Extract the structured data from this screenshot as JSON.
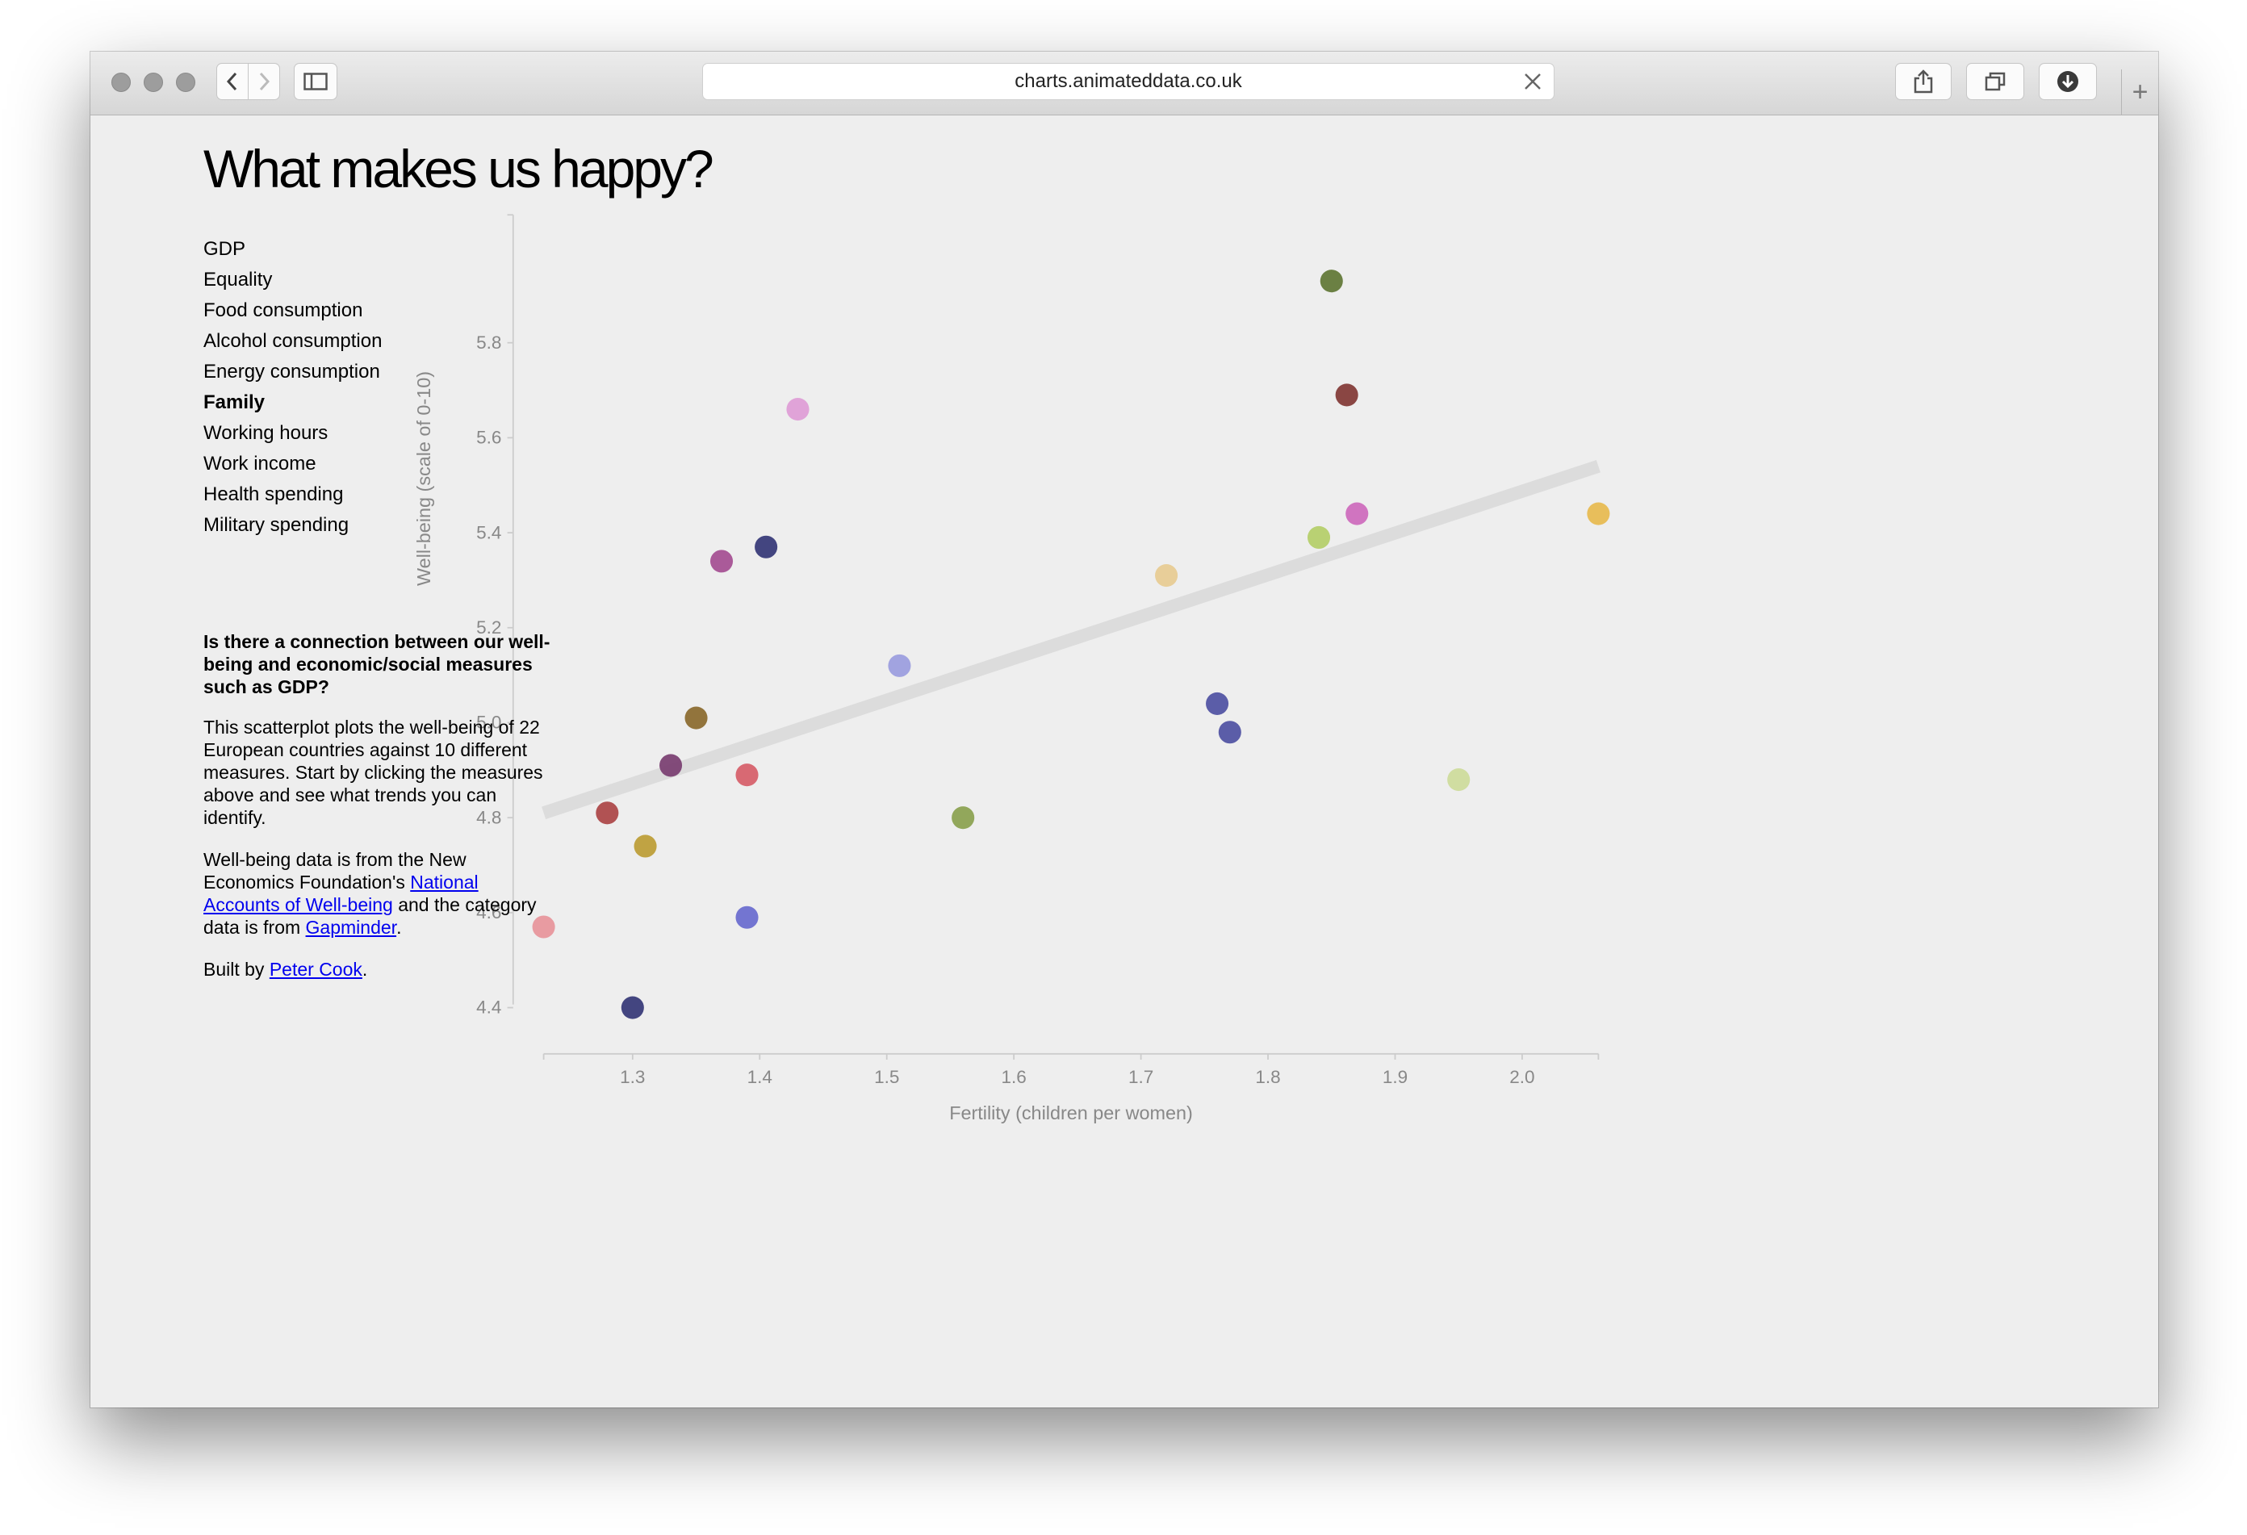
{
  "browser": {
    "url": "charts.animateddata.co.uk",
    "icons": [
      "back-icon",
      "forward-icon",
      "sidebar-icon",
      "close-icon",
      "share-icon",
      "tabs-icon",
      "download-icon",
      "plus-icon"
    ],
    "new_tab_symbol": "+"
  },
  "page": {
    "title": "What makes us happy?",
    "measures": [
      {
        "label": "GDP",
        "active": false
      },
      {
        "label": "Equality",
        "active": false
      },
      {
        "label": "Food consumption",
        "active": false
      },
      {
        "label": "Alcohol consumption",
        "active": false
      },
      {
        "label": "Energy consumption",
        "active": false
      },
      {
        "label": "Family",
        "active": true
      },
      {
        "label": "Working hours",
        "active": false
      },
      {
        "label": "Work income",
        "active": false
      },
      {
        "label": "Health spending",
        "active": false
      },
      {
        "label": "Military spending",
        "active": false
      }
    ],
    "info": {
      "question": "Is there a connection between our well-being and economic/social measures such as GDP?",
      "description": "This scatterplot plots the well-being of 22 European countries against 10 different measures. Start by clicking the measures above and see what trends you can identify.",
      "source_pre": "Well-being data is from the New Economics Foundation's ",
      "source_link1": "National Accounts of Well-being",
      "source_mid": " and the category data is from ",
      "source_link2": "Gapminder",
      "source_post": ".",
      "built_pre": "Built by ",
      "built_link": "Peter Cook",
      "built_post": "."
    }
  },
  "chart_data": {
    "type": "scatter",
    "title": "",
    "xlabel": "Fertility (children per women)",
    "ylabel": "Well-being (scale of 0-10)",
    "xlim": [
      1.23,
      2.06
    ],
    "ylim": [
      4.37,
      5.93
    ],
    "xticks": [
      "1.3",
      "1.4",
      "1.5",
      "1.6",
      "1.7",
      "1.8",
      "1.9",
      "2.0"
    ],
    "yticks": [
      "4.4",
      "4.6",
      "4.8",
      "5.0",
      "5.2",
      "5.4",
      "5.6",
      "5.8"
    ],
    "trend_line": {
      "x": [
        1.23,
        2.06
      ],
      "y": [
        4.81,
        5.54
      ],
      "color": "#dcdcdc"
    },
    "points": [
      {
        "x": 1.85,
        "y": 5.93,
        "color": "#637939"
      },
      {
        "x": 1.862,
        "y": 5.69,
        "color": "#843c39"
      },
      {
        "x": 1.43,
        "y": 5.66,
        "color": "#de9ed6"
      },
      {
        "x": 1.87,
        "y": 5.44,
        "color": "#ce6dbd"
      },
      {
        "x": 2.06,
        "y": 5.44,
        "color": "#e7ba52"
      },
      {
        "x": 1.84,
        "y": 5.39,
        "color": "#b5cf6b"
      },
      {
        "x": 1.405,
        "y": 5.37,
        "color": "#393b79"
      },
      {
        "x": 1.37,
        "y": 5.34,
        "color": "#a55194"
      },
      {
        "x": 1.72,
        "y": 5.31,
        "color": "#e7cb94"
      },
      {
        "x": 1.51,
        "y": 5.12,
        "color": "#9c9ede"
      },
      {
        "x": 1.76,
        "y": 5.04,
        "color": "#5254a3"
      },
      {
        "x": 1.35,
        "y": 5.01,
        "color": "#8c6d31"
      },
      {
        "x": 1.77,
        "y": 4.98,
        "color": "#5254a3"
      },
      {
        "x": 1.33,
        "y": 4.91,
        "color": "#7b4173"
      },
      {
        "x": 1.39,
        "y": 4.89,
        "color": "#d6616b"
      },
      {
        "x": 1.95,
        "y": 4.88,
        "color": "#cedb9c"
      },
      {
        "x": 1.28,
        "y": 4.81,
        "color": "#ad494a"
      },
      {
        "x": 1.56,
        "y": 4.8,
        "color": "#8ca252"
      },
      {
        "x": 1.31,
        "y": 4.74,
        "color": "#bd9e39"
      },
      {
        "x": 1.39,
        "y": 4.59,
        "color": "#6b6ecf"
      },
      {
        "x": 1.23,
        "y": 4.57,
        "color": "#e7969c"
      },
      {
        "x": 1.3,
        "y": 4.4,
        "color": "#393b79"
      }
    ],
    "grid": false,
    "legend": "none"
  }
}
